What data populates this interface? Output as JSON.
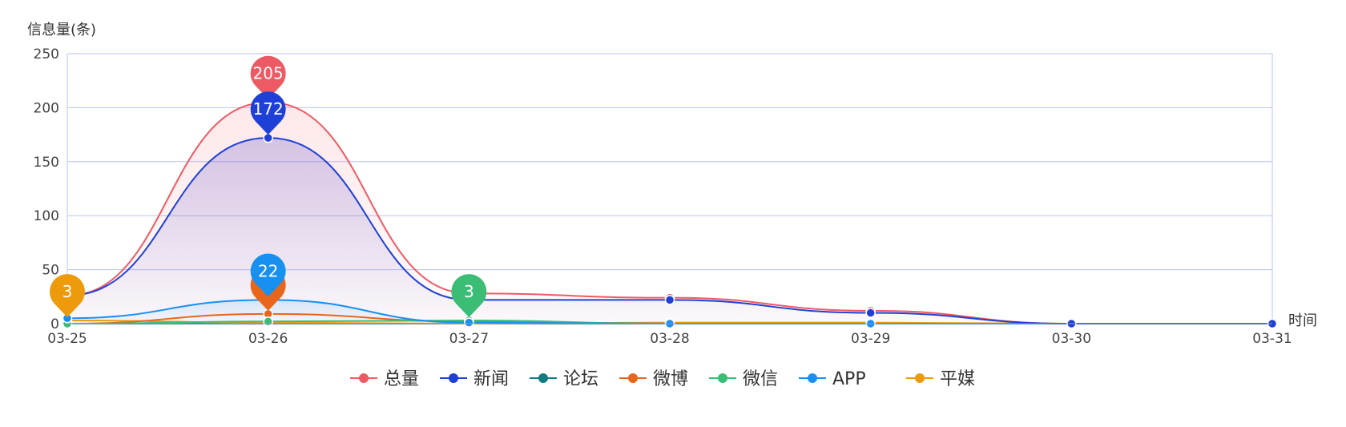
{
  "chart_data": {
    "type": "line",
    "title": "",
    "ylabel": "信息量(条)",
    "xlabel": "时间",
    "ylim": [
      0,
      250
    ],
    "yticks": [
      0,
      50,
      100,
      150,
      200,
      250
    ],
    "grid": true,
    "legend_position": "bottom",
    "x": [
      "03-25",
      "03-26",
      "03-27",
      "03-28",
      "03-29",
      "03-30",
      "03-31"
    ],
    "series": [
      {
        "name": "总量",
        "color": "#ee5a63",
        "values": [
          26,
          205,
          28,
          24,
          12,
          0,
          0
        ],
        "area": true,
        "area_color": "#ee5a63"
      },
      {
        "name": "新闻",
        "color": "#1f40d6",
        "values": [
          26,
          172,
          22,
          22,
          10,
          0,
          0
        ],
        "area": true,
        "area_color": "#6a5acd"
      },
      {
        "name": "论坛",
        "color": "#0f7d80",
        "values": [
          0,
          0,
          0,
          0,
          0,
          0,
          0
        ]
      },
      {
        "name": "微博",
        "color": "#e8661b",
        "values": [
          0,
          9,
          2,
          0,
          0,
          0,
          0
        ]
      },
      {
        "name": "微信",
        "color": "#3cbd76",
        "values": [
          0,
          2,
          3,
          0,
          0,
          0,
          0
        ]
      },
      {
        "name": "APP",
        "color": "#1890f0",
        "values": [
          5,
          22,
          1,
          0,
          0,
          0,
          0
        ],
        "area": true,
        "area_color": "#1890f0"
      },
      {
        "name": "平媒",
        "color": "#ee9a0d",
        "values": [
          3,
          1,
          0,
          1,
          1,
          0,
          0
        ]
      }
    ],
    "markers": [
      {
        "series": 0,
        "index": 1,
        "label": "205"
      },
      {
        "series": 1,
        "index": 1,
        "label": "172"
      },
      {
        "series": 3,
        "index": 1,
        "label": ""
      },
      {
        "series": 5,
        "index": 1,
        "label": "22"
      },
      {
        "series": 4,
        "index": 2,
        "label": "3"
      },
      {
        "series": 6,
        "index": 0,
        "label": "3"
      }
    ]
  }
}
